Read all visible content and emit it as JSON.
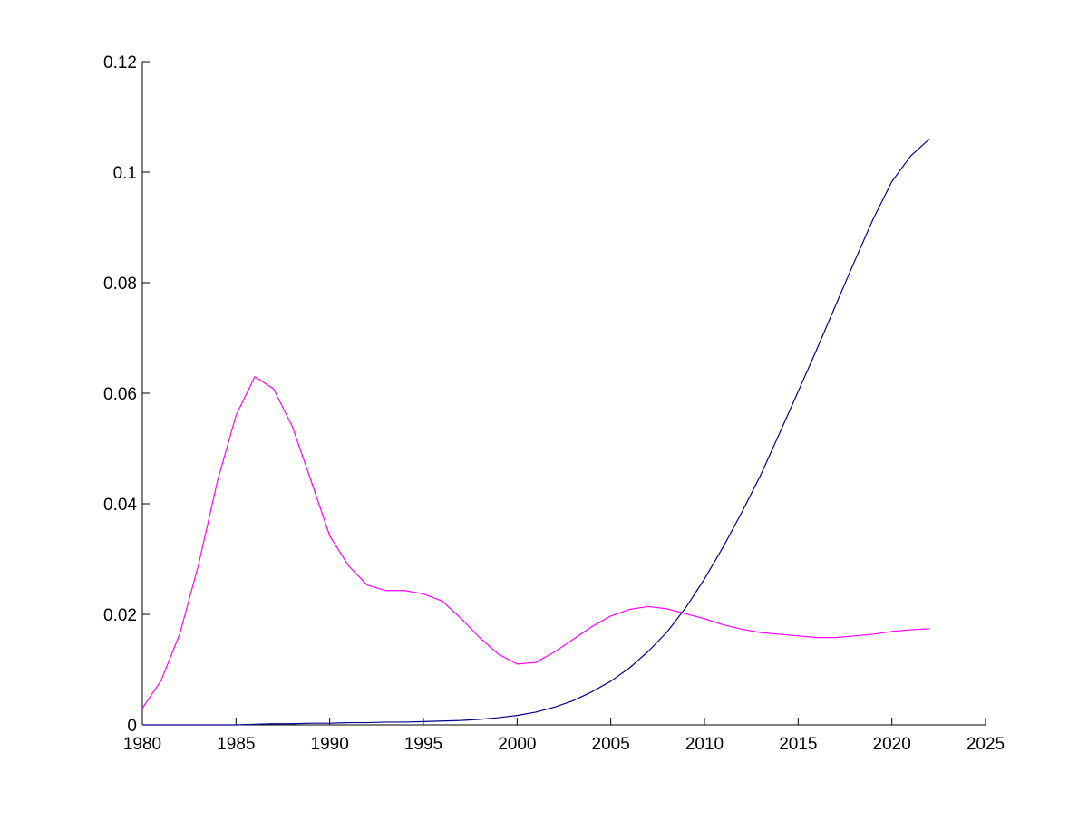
{
  "chart_data": {
    "type": "line",
    "title": "",
    "xlabel": "",
    "ylabel": "",
    "xlim": [
      1980,
      2025
    ],
    "ylim": [
      0,
      0.12
    ],
    "xticks": [
      1980,
      1985,
      1990,
      1995,
      2000,
      2005,
      2010,
      2015,
      2020,
      2025
    ],
    "yticks": [
      0,
      0.02,
      0.04,
      0.06,
      0.08,
      0.1,
      0.12
    ],
    "xtick_labels": [
      "1980",
      "1985",
      "1990",
      "1995",
      "2000",
      "2005",
      "2010",
      "2015",
      "2020",
      "2025"
    ],
    "ytick_labels": [
      "0",
      "0.02",
      "0.04",
      "0.06",
      "0.08",
      "0.1",
      "0.12"
    ],
    "grid": false,
    "legend": "none",
    "x": [
      1980,
      1981,
      1982,
      1983,
      1984,
      1985,
      1986,
      1987,
      1988,
      1989,
      1990,
      1991,
      1992,
      1993,
      1994,
      1995,
      1996,
      1997,
      1998,
      1999,
      2000,
      2001,
      2002,
      2003,
      2004,
      2005,
      2006,
      2007,
      2008,
      2009,
      2010,
      2011,
      2012,
      2013,
      2014,
      2015,
      2016,
      2017,
      2018,
      2019,
      2020,
      2021,
      2022
    ],
    "series": [
      {
        "color": "#ff00ff",
        "values": [
          0.003,
          0.008,
          0.0165,
          0.029,
          0.044,
          0.056,
          0.063,
          0.0608,
          0.054,
          0.0442,
          0.0342,
          0.0288,
          0.0253,
          0.0243,
          0.0243,
          0.0237,
          0.0224,
          0.0193,
          0.0158,
          0.0128,
          0.011,
          0.0113,
          0.0132,
          0.0155,
          0.0178,
          0.0197,
          0.0209,
          0.0214,
          0.021,
          0.0201,
          0.0192,
          0.0181,
          0.0173,
          0.0167,
          0.0164,
          0.0161,
          0.0158,
          0.0158,
          0.0161,
          0.0164,
          0.0169,
          0.0172,
          0.0174
        ]
      },
      {
        "color": "#00008b",
        "values": [
          0.0,
          0.0,
          0.0,
          0.0,
          0.0,
          0.0,
          0.0001,
          0.0002,
          0.0002,
          0.0003,
          0.0003,
          0.0004,
          0.0004,
          0.0005,
          0.0005,
          0.0006,
          0.0007,
          0.0008,
          0.001,
          0.0013,
          0.0017,
          0.0023,
          0.0032,
          0.0044,
          0.006,
          0.0079,
          0.0103,
          0.0133,
          0.0168,
          0.0212,
          0.0264,
          0.0322,
          0.0385,
          0.0452,
          0.0527,
          0.0603,
          0.068,
          0.0759,
          0.0838,
          0.0915,
          0.0983,
          0.1029,
          0.106
        ]
      }
    ]
  }
}
